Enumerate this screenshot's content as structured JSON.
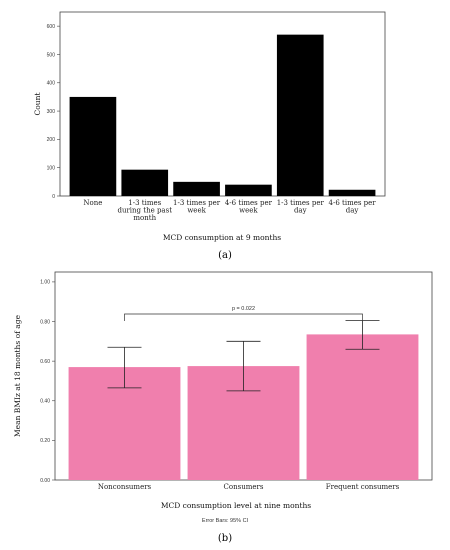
{
  "chart_data": [
    {
      "type": "bar",
      "panel_label": "(a)",
      "xlabel": "MCD consumption at 9 months",
      "ylabel": "Count",
      "ylim": [
        0,
        650
      ],
      "yticks": [
        "0",
        "100",
        "200",
        "300",
        "400",
        "500",
        "600"
      ],
      "categories": [
        "None",
        "1-3 times during the past month",
        "1-3 times per week",
        "4-6 times per week",
        "1-3 times per day",
        "4-6 times per day"
      ],
      "category_lines": [
        [
          "None"
        ],
        [
          "1-3 times",
          "during the past",
          "month"
        ],
        [
          "1-3 times per",
          "week"
        ],
        [
          "4-6 times per",
          "week"
        ],
        [
          "1-3 times per",
          "day"
        ],
        [
          "4-6 times per",
          "day"
        ]
      ],
      "values": [
        350,
        93,
        50,
        40,
        570,
        22
      ],
      "bar_color": "#000000",
      "grid": false
    },
    {
      "type": "bar",
      "panel_label": "(b)",
      "xlabel": "MCD consumption level at nine months",
      "ylabel": "Mean BMIz at 18 months of age",
      "ylim": [
        0,
        1.05
      ],
      "yticks": [
        "0.00",
        "0.20",
        "0.40",
        "0.60",
        "0.80",
        "1.00"
      ],
      "categories": [
        "Nonconsumers",
        "Consumers",
        "Frequent consumers"
      ],
      "values": [
        0.57,
        0.575,
        0.735
      ],
      "error_low": [
        0.465,
        0.45,
        0.66
      ],
      "error_high": [
        0.67,
        0.7,
        0.805
      ],
      "annotation": "p = 0.022",
      "footnote": "Error Bars: 95% CI",
      "bar_color": "#f07fad",
      "grid": false
    }
  ]
}
